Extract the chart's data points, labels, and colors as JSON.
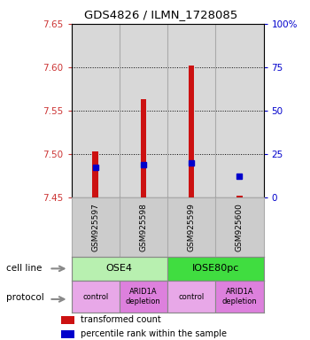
{
  "title": "GDS4826 / ILMN_1728085",
  "samples": [
    "GSM925597",
    "GSM925598",
    "GSM925599",
    "GSM925600"
  ],
  "bar_bottoms": [
    7.45,
    7.45,
    7.45,
    7.45
  ],
  "bar_tops": [
    7.503,
    7.563,
    7.602,
    7.452
  ],
  "percentile_values": [
    7.484,
    7.487,
    7.49,
    7.474
  ],
  "ylim": [
    7.45,
    7.65
  ],
  "yticks": [
    7.45,
    7.5,
    7.55,
    7.6,
    7.65
  ],
  "right_yticks": [
    0,
    25,
    50,
    75,
    100
  ],
  "right_ylim": [
    0,
    100
  ],
  "cell_line_groups": [
    {
      "label": "OSE4",
      "cols": [
        0,
        1
      ],
      "color": "#b8f0b0"
    },
    {
      "label": "IOSE80pc",
      "cols": [
        2,
        3
      ],
      "color": "#40dd40"
    }
  ],
  "protocols": [
    {
      "label": "control",
      "col": 0,
      "color": "#e8a8e8"
    },
    {
      "label": "ARID1A\ndepletion",
      "col": 1,
      "color": "#dd80dd"
    },
    {
      "label": "control",
      "col": 2,
      "color": "#e8a8e8"
    },
    {
      "label": "ARID1A\ndepletion",
      "col": 3,
      "color": "#dd80dd"
    }
  ],
  "bar_color": "#cc1111",
  "percentile_color": "#0000cc",
  "bar_width": 0.12,
  "background_color": "#ffffff",
  "plot_bg_color": "#d8d8d8",
  "grid_color": "#000000",
  "label_color_left": "#cc3333",
  "label_color_right": "#0000cc",
  "sample_bg_color": "#cccccc"
}
